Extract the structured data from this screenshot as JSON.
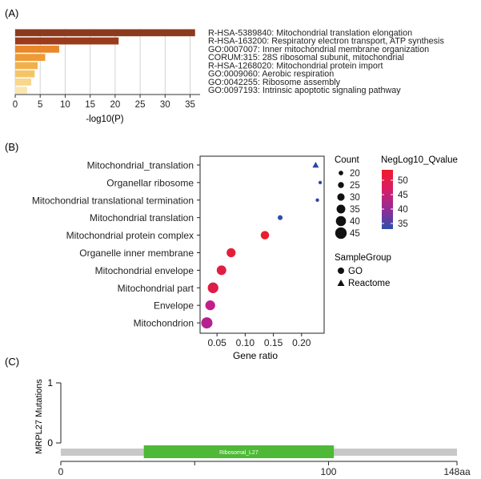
{
  "panels": {
    "a": "(A)",
    "b": "(B)",
    "c": "(C)"
  },
  "chart_data": [
    {
      "type": "bar",
      "orientation": "horizontal",
      "xlabel": "-log10(P)",
      "xlim": [
        0,
        37
      ],
      "xticks": [
        0,
        5,
        10,
        15,
        20,
        25,
        30,
        35
      ],
      "grid": true,
      "bars": [
        {
          "term": "R-HSA-5389840: Mitochondrial translation elongation",
          "value": 36.0,
          "color": "#8B3A1E"
        },
        {
          "term": "R-HSA-163200: Respiratory electron transport, ATP synthesis",
          "value": 20.7,
          "color": "#9A3B1C"
        },
        {
          "term": "GO:0007007: Inner mitochondrial membrane organization",
          "value": 8.8,
          "color": "#E9872B"
        },
        {
          "term": "CORUM:315: 28S ribosomal subunit, mitochondrial",
          "value": 6.0,
          "color": "#EE9B36"
        },
        {
          "term": "R-HSA-1268020: Mitochondrial protein import",
          "value": 4.5,
          "color": "#F2B04D"
        },
        {
          "term": "GO:0009060: Aerobic respiration",
          "value": 3.9,
          "color": "#F5C469"
        },
        {
          "term": "GO:0042255: Ribosome assembly",
          "value": 3.2,
          "color": "#F8D68A"
        },
        {
          "term": "GO:0097193: Intrinsic apoptotic signaling pathway",
          "value": 2.4,
          "color": "#FBE6AE"
        }
      ]
    },
    {
      "type": "scatter",
      "xlabel": "Gene ratio",
      "ylabel": "",
      "xlim": [
        0.02,
        0.24
      ],
      "xticks": [
        0.05,
        0.1,
        0.15,
        0.2
      ],
      "xtick_labels": [
        "0.05",
        "0.10",
        "0.15",
        "0.20"
      ],
      "points": [
        {
          "term": "Mitochondrial_translation",
          "ratio": 0.225,
          "count": 18,
          "qvalue": 33,
          "group": "Reactome",
          "color": "#2B46A8"
        },
        {
          "term": "Organellar ribosome",
          "ratio": 0.233,
          "count": 16,
          "qvalue": 33,
          "group": "GO",
          "color": "#2B46A8"
        },
        {
          "term": "Mitochondrial translational termination",
          "ratio": 0.228,
          "count": 16,
          "qvalue": 33,
          "group": "GO",
          "color": "#2B46A8"
        },
        {
          "term": "Mitochondrial translation",
          "ratio": 0.162,
          "count": 21,
          "qvalue": 34,
          "group": "GO",
          "color": "#2D4FA6"
        },
        {
          "term": "Mitochondrial protein complex",
          "ratio": 0.135,
          "count": 34,
          "qvalue": 54,
          "group": "GO",
          "color": "#E8202B"
        },
        {
          "term": "Organelle inner membrane",
          "ratio": 0.075,
          "count": 36,
          "qvalue": 53,
          "group": "GO",
          "color": "#E51E38"
        },
        {
          "term": "Mitochondrial envelope",
          "ratio": 0.058,
          "count": 38,
          "qvalue": 52,
          "group": "GO",
          "color": "#E01E44"
        },
        {
          "term": "Mitochondrial part",
          "ratio": 0.043,
          "count": 42,
          "qvalue": 52,
          "group": "GO",
          "color": "#DE1C48"
        },
        {
          "term": "Envelope",
          "ratio": 0.038,
          "count": 39,
          "qvalue": 46,
          "group": "GO",
          "color": "#C41E8A"
        },
        {
          "term": "Mitochondrion",
          "ratio": 0.032,
          "count": 44,
          "qvalue": 44,
          "group": "GO",
          "color": "#B5208F"
        }
      ],
      "legend_count": {
        "title": "Count",
        "values": [
          "20",
          "25",
          "30",
          "35",
          "40",
          "45"
        ]
      },
      "legend_q": {
        "title": "NegLog10_Qvalue",
        "ticks": [
          "50",
          "45",
          "40",
          "35"
        ],
        "colors": [
          "#F21A2B",
          "#D41E6A",
          "#8A2D9A",
          "#2B4FA8"
        ]
      },
      "legend_group": {
        "title": "SampleGroup",
        "items": [
          "GO",
          "Reactome"
        ]
      }
    },
    {
      "type": "lollipop",
      "ylabel": "MRPL27 Mutations",
      "yticks": [
        "1",
        "0"
      ],
      "protein_length": 148,
      "domain": {
        "label": "Ribosomal_L27",
        "start": 31,
        "end": 102,
        "color": "#4DB936"
      },
      "xtick_labels": [
        "0",
        "100",
        "148aa"
      ]
    }
  ]
}
